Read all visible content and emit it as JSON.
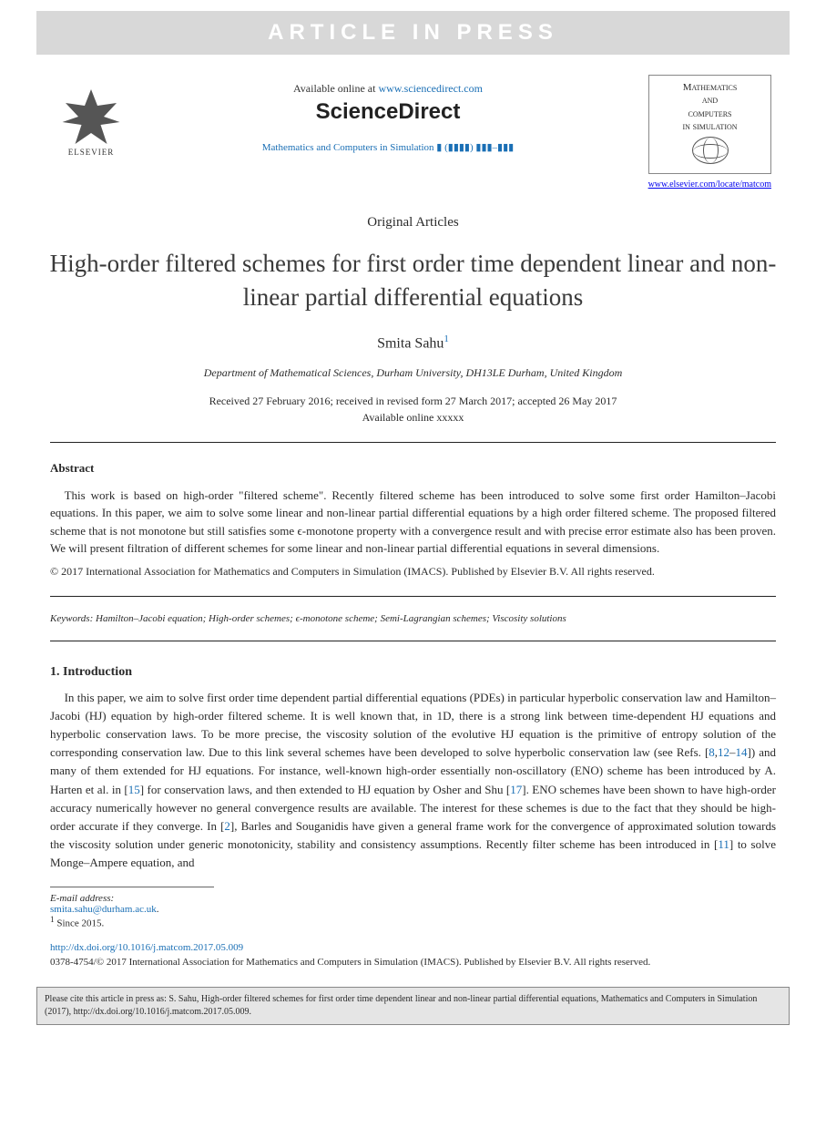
{
  "banner": {
    "text": "ARTICLE IN PRESS"
  },
  "header": {
    "elsevier_label": "ELSEVIER",
    "available_prefix": "Available online at ",
    "available_url": "www.sciencedirect.com",
    "brand": "ScienceDirect",
    "journal_ref": "Mathematics and Computers in Simulation ▮ (▮▮▮▮) ▮▮▮–▮▮▮",
    "journal_box_line1": "Mathematics",
    "journal_box_line2": "and",
    "journal_box_line3": "computers",
    "journal_box_line4": "in simulation",
    "journal_url": "www.elsevier.com/locate/matcom"
  },
  "article": {
    "type": "Original Articles",
    "title": "High-order filtered schemes for first order time dependent linear and non-linear partial differential equations",
    "author": "Smita Sahu",
    "author_note_marker": "1",
    "affiliation": "Department of Mathematical Sciences, Durham University, DH13LE Durham, United Kingdom",
    "dates_line1": "Received 27 February 2016; received in revised form 27 March 2017; accepted 26 May 2017",
    "dates_line2": "Available online xxxxx"
  },
  "abstract": {
    "heading": "Abstract",
    "text": "This work is based on high-order \"filtered scheme\". Recently filtered scheme has been introduced to solve some first order Hamilton–Jacobi equations. In this paper, we aim to solve some linear and non-linear partial differential equations by a high order filtered scheme. The proposed filtered scheme that is not monotone but still satisfies some ϵ-monotone property with a convergence result and with precise error estimate also has been proven. We will present filtration of different schemes for some linear and non-linear partial differential equations in several dimensions.",
    "copyright": "© 2017 International Association for Mathematics and Computers in Simulation (IMACS). Published by Elsevier B.V. All rights reserved."
  },
  "keywords": {
    "label": "Keywords:",
    "text": " Hamilton–Jacobi equation; High-order schemes; ϵ-monotone scheme; Semi-Lagrangian schemes; Viscosity solutions"
  },
  "introduction": {
    "heading": "1.  Introduction",
    "p1a": "In this paper, we aim to solve first order time dependent partial differential equations (PDEs) in particular hyperbolic conservation law and Hamilton–Jacobi (HJ) equation by high-order filtered scheme. It is well known that, in 1D, there is a strong link between time-dependent HJ equations and hyperbolic conservation laws. To be more precise, the viscosity solution of the evolutive HJ equation is the primitive of entropy solution of the corresponding conservation law. Due to this link several schemes have been developed to solve hyperbolic conservation law (see Refs. [",
    "ref1": "8",
    "p1b": ",",
    "ref2": "12",
    "p1c": "–",
    "ref3": "14",
    "p1d": "]) and many of them extended for HJ equations. For instance, well-known high-order essentially non-oscillatory (ENO) scheme has been introduced by A. Harten et al. in [",
    "ref4": "15",
    "p1e": "] for conservation laws, and then extended to HJ equation by Osher and Shu [",
    "ref5": "17",
    "p1f": "]. ENO schemes have been shown to have high-order accuracy numerically however no general convergence results are available. The interest for these schemes is due to the fact that they should be high-order accurate if they converge. In [",
    "ref6": "2",
    "p1g": "], Barles and Souganidis have given a general frame work for the convergence of approximated solution towards the viscosity solution under generic monotonicity, stability and consistency assumptions. Recently filter scheme has been introduced in [",
    "ref7": "11",
    "p1h": "] to solve Monge–Ampere equation, and"
  },
  "footnotes": {
    "email_label": "E-mail address:",
    "email": "smita.sahu@durham.ac.uk",
    "email_suffix": ".",
    "note1_marker": "1",
    "note1_text": "  Since 2015."
  },
  "doi": {
    "url": "http://dx.doi.org/10.1016/j.matcom.2017.05.009",
    "issn_line": "0378-4754/© 2017 International Association for Mathematics and Computers in Simulation (IMACS). Published by Elsevier B.V. All rights reserved."
  },
  "citebox": {
    "text": "Please cite this article in press as: S. Sahu, High-order filtered schemes for first order time dependent linear and non-linear partial differential equations, Mathematics and Computers in Simulation (2017), http://dx.doi.org/10.1016/j.matcom.2017.05.009."
  },
  "colors": {
    "link": "#1a6fb5",
    "banner_bg": "#d8d8d8",
    "citebox_bg": "#e5e5e5",
    "text": "#2a2a2a"
  }
}
